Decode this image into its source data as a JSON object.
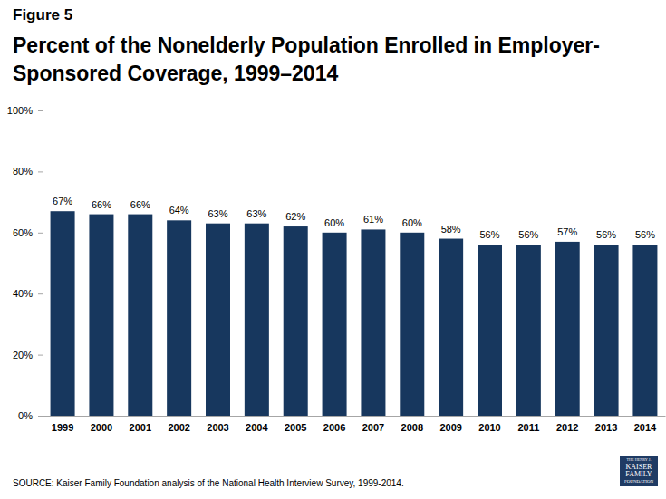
{
  "chart_data": {
    "type": "bar",
    "title": "Percent of the Nonelderly Population Enrolled in Employer-Sponsored Coverage, 1999–2014",
    "annotations": [
      "Figure 5",
      "SOURCE: Kaiser Family Foundation analysis of the National Health Interview Survey, 1999-2014.",
      "THE HENRY J.",
      "KAISER",
      "FAMILY",
      "FOUNDATION"
    ],
    "categories": [
      "1999",
      "2000",
      "2001",
      "2002",
      "2003",
      "2004",
      "2005",
      "2006",
      "2007",
      "2008",
      "2009",
      "2010",
      "2011",
      "2012",
      "2013",
      "2014"
    ],
    "values": [
      67,
      66,
      66,
      64,
      63,
      63,
      62,
      60,
      61,
      60,
      58,
      56,
      56,
      57,
      56,
      56
    ],
    "value_labels": [
      "67%",
      "66%",
      "66%",
      "64%",
      "63%",
      "63%",
      "62%",
      "60%",
      "61%",
      "60%",
      "58%",
      "56%",
      "56%",
      "57%",
      "56%",
      "56%"
    ],
    "data_labels": true,
    "color": "#17375e",
    "ylim": [
      0,
      100
    ],
    "yticks": [
      {
        "value": 0,
        "label": "0%"
      },
      {
        "value": 20,
        "label": "20%"
      },
      {
        "value": 40,
        "label": "40%"
      },
      {
        "value": 60,
        "label": "60%"
      },
      {
        "value": 80,
        "label": "80%"
      },
      {
        "value": 100,
        "label": "100%"
      }
    ],
    "grid": false
  }
}
